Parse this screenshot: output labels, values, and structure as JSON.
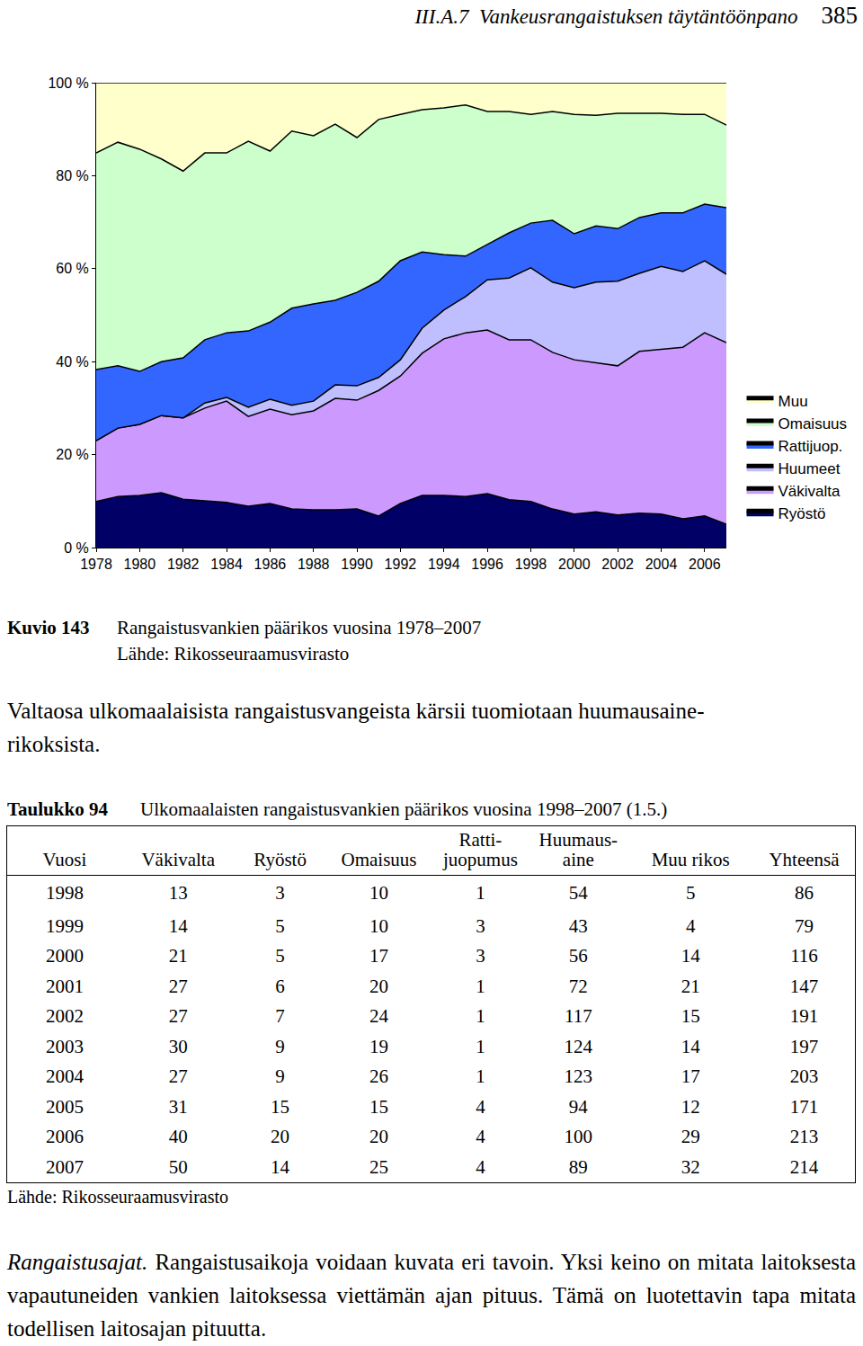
{
  "header": {
    "running_title": "III.A.7  Vankeusrangaistuksen täytäntöönpano",
    "page_number": "385"
  },
  "chart_data": {
    "type": "area",
    "stacked": true,
    "x": [
      1978,
      1979,
      1980,
      1981,
      1982,
      1983,
      1984,
      1985,
      1986,
      1987,
      1988,
      1989,
      1990,
      1991,
      1992,
      1993,
      1994,
      1995,
      1996,
      1997,
      1998,
      1999,
      2000,
      2001,
      2002,
      2003,
      2004,
      2005,
      2006,
      2007
    ],
    "xlim": [
      1978,
      2007
    ],
    "xticks": [
      1978,
      1980,
      1982,
      1984,
      1986,
      1988,
      1990,
      1992,
      1994,
      1996,
      1998,
      2000,
      2002,
      2004,
      2006
    ],
    "ylim": [
      0,
      100
    ],
    "yticks": [
      {
        "value": 0,
        "label": "0 %"
      },
      {
        "value": 20,
        "label": "20 %"
      },
      {
        "value": 40,
        "label": "40 %"
      },
      {
        "value": 60,
        "label": "60 %"
      },
      {
        "value": 80,
        "label": "80 %"
      },
      {
        "value": 100,
        "label": "100 %"
      }
    ],
    "grid": false,
    "legend": "right",
    "series": [
      {
        "name": "Ryöstö",
        "color": "#000066",
        "values": [
          9.9,
          11.0,
          11.2,
          11.8,
          10.4,
          10.0,
          9.7,
          8.9,
          9.5,
          8.3,
          8.1,
          8.1,
          8.3,
          6.8,
          9.5,
          11.2,
          11.2,
          11.0,
          11.6,
          10.3,
          9.9,
          8.3,
          7.2,
          7.7,
          7.0,
          7.4,
          7.2,
          6.2,
          6.8,
          5.0
        ]
      },
      {
        "name": "Väkivalta",
        "color": "#cc99ff",
        "values": [
          13.1,
          14.7,
          15.3,
          16.6,
          17.5,
          20.0,
          21.8,
          19.3,
          20.3,
          20.3,
          21.3,
          24.0,
          23.4,
          27.0,
          27.4,
          30.6,
          33.7,
          35.2,
          35.2,
          34.4,
          34.8,
          33.7,
          33.2,
          32.1,
          32.1,
          34.8,
          35.4,
          36.9,
          39.4,
          39.1
        ]
      },
      {
        "name": "Huumeet",
        "color": "#bfbfff",
        "values": [
          0,
          0,
          0,
          0,
          0,
          1.1,
          0.8,
          2.0,
          2.1,
          2.0,
          2.1,
          2.9,
          3.1,
          2.8,
          3.5,
          5.4,
          6.2,
          7.8,
          10.8,
          13.3,
          15.5,
          15.1,
          15.5,
          17.3,
          18.2,
          16.8,
          17.9,
          16.3,
          15.5,
          14.7
        ]
      },
      {
        "name": "Rattijuop.",
        "color": "#3366ff",
        "values": [
          15.3,
          13.4,
          11.4,
          11.6,
          12.9,
          13.6,
          13.9,
          16.4,
          16.6,
          20.9,
          20.9,
          18.2,
          20.1,
          20.7,
          21.3,
          16.4,
          11.9,
          8.7,
          7.6,
          9.7,
          9.6,
          13.3,
          11.6,
          12.1,
          11.3,
          12.0,
          11.5,
          12.6,
          12.2,
          14.3
        ]
      },
      {
        "name": "Omaisuus",
        "color": "#ccffcc",
        "values": [
          46.6,
          48.1,
          47.8,
          43.6,
          40.2,
          40.2,
          38.7,
          40.8,
          36.8,
          38.1,
          36.2,
          37.9,
          33.3,
          34.8,
          31.5,
          30.6,
          31.6,
          32.5,
          28.6,
          26.1,
          23.4,
          23.4,
          25.7,
          23.8,
          24.8,
          22.4,
          21.4,
          21.2,
          19.3,
          17.8
        ]
      },
      {
        "name": "Muu",
        "color": "#ffffcc",
        "values": [
          15.1,
          12.8,
          14.3,
          16.4,
          19.0,
          15.1,
          15.1,
          12.6,
          14.7,
          10.4,
          11.4,
          8.9,
          11.8,
          7.9,
          6.8,
          5.8,
          5.4,
          4.8,
          6.2,
          6.2,
          6.8,
          6.2,
          6.8,
          7.0,
          6.6,
          6.6,
          6.6,
          6.8,
          6.8,
          9.1
        ]
      }
    ]
  },
  "figure_caption": {
    "label": "Kuvio 143",
    "text": "Rangaistusvankien päärikos vuosina 1978–2007",
    "source": "Lähde: Rikosseuraamusvirasto"
  },
  "paragraph": "Valtaosa ulkomaalaisista rangaistusvangeista kärsii tuomiotaan huumausaine-\nrikoksista.",
  "table": {
    "label": "Taulukko 94",
    "title": "Ulkomaalaisten rangaistusvankien päärikos vuosina 1998–2007 (1.5.)",
    "columns": [
      "Vuosi",
      "Väkivalta",
      "Ryöstö",
      "Omaisuus",
      "Ratti-\njuopumus",
      "Huumaus-\naine",
      "Muu rikos",
      "Yhteensä"
    ],
    "rows": [
      [
        1998,
        13,
        3,
        10,
        1,
        54,
        5,
        86
      ],
      [
        1999,
        14,
        5,
        10,
        3,
        43,
        4,
        79
      ],
      [
        2000,
        21,
        5,
        17,
        3,
        56,
        14,
        116
      ],
      [
        2001,
        27,
        6,
        20,
        1,
        72,
        21,
        147
      ],
      [
        2002,
        27,
        7,
        24,
        1,
        117,
        15,
        191
      ],
      [
        2003,
        30,
        9,
        19,
        1,
        124,
        14,
        197
      ],
      [
        2004,
        27,
        9,
        26,
        1,
        123,
        17,
        203
      ],
      [
        2005,
        31,
        15,
        15,
        4,
        94,
        12,
        171
      ],
      [
        2006,
        40,
        20,
        20,
        4,
        100,
        29,
        213
      ],
      [
        2007,
        50,
        14,
        25,
        4,
        89,
        32,
        214
      ]
    ],
    "source": "Lähde: Rikosseuraamusvirasto"
  },
  "closing_paragraph": {
    "lead": "Rangaistusajat.",
    "text": "Rangaistusaikoja voidaan kuvata eri tavoin. Yksi keino on mitata laitoksesta vapautuneiden vankien laitoksessa viettämän ajan pituus. Tämä on luotettavin tapa mitata todellisen laitosajan pituutta."
  }
}
